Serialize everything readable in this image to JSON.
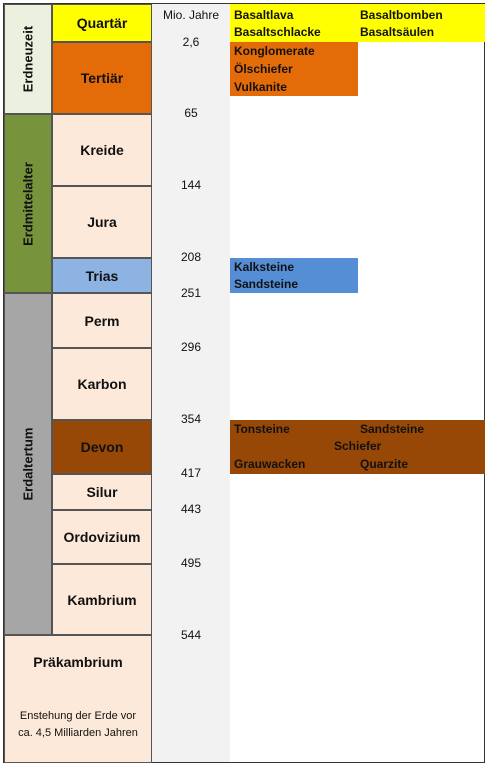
{
  "header": "Mio. Jahre",
  "eras": [
    {
      "label": "Erdneuzeit"
    },
    {
      "label": "Erdmittelalter"
    },
    {
      "label": "Erdaltertum"
    }
  ],
  "periods": [
    {
      "label": "Quartär"
    },
    {
      "label": "Tertiär"
    },
    {
      "label": "Kreide"
    },
    {
      "label": "Jura"
    },
    {
      "label": "Trias"
    },
    {
      "label": "Perm"
    },
    {
      "label": "Karbon"
    },
    {
      "label": "Devon"
    },
    {
      "label": "Silur"
    },
    {
      "label": "Ordovizium"
    },
    {
      "label": "Kambrium"
    }
  ],
  "precambrian": {
    "label": "Präkambrium",
    "note_line1": "Enstehung der Erde vor",
    "note_line2": "ca. 4,5 Milliarden Jahren"
  },
  "ages": [
    "2,6",
    "65",
    "144",
    "208",
    "251",
    "296",
    "354",
    "417",
    "443",
    "495",
    "544"
  ],
  "rocks": {
    "quartaer": [
      "Basaltlava",
      "Basaltbomben",
      "Basaltschlacke",
      "Basaltsäulen"
    ],
    "tertiaer": [
      "Konglomerate",
      "Ölschiefer",
      "Vulkanite"
    ],
    "trias": [
      "Kalksteine",
      "Sandsteine"
    ],
    "devon": [
      "Tonsteine",
      "Sandsteine",
      "Schiefer",
      "Grauwacken",
      "Quarzite"
    ]
  },
  "colors": {
    "yellow": "#ffff00",
    "orange": "#e36c09",
    "peach": "#fde9d9",
    "light_blue": "#8db3e2",
    "blue": "#558ed5",
    "brown": "#984806",
    "era_neu": "#ebf1de",
    "era_mittel": "#77933c",
    "era_alt": "#a6a6a6"
  }
}
